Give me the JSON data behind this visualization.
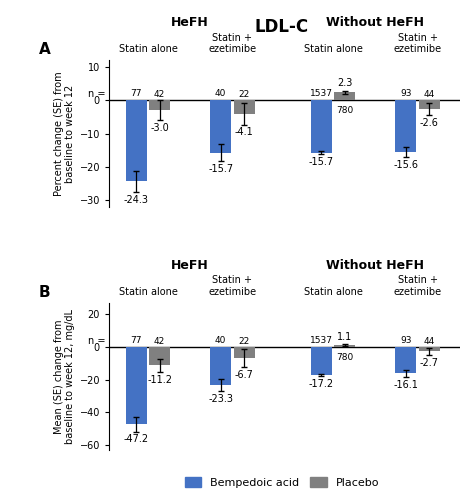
{
  "title": "LDL-C",
  "panel_A": {
    "ylabel": "Percent change (SE) from\nbaseline to week 12",
    "ylim": [
      -32,
      12
    ],
    "yticks": [
      -30,
      -20,
      -10,
      0,
      10
    ],
    "bempedoic_values": [
      -24.3,
      -15.7,
      -15.7,
      -15.6
    ],
    "placebo_values": [
      -3.0,
      -4.1,
      2.3,
      -2.6
    ],
    "bempedoic_errors": [
      3.2,
      2.5,
      0.45,
      1.5
    ],
    "placebo_errors": [
      3.0,
      3.2,
      0.55,
      1.8
    ],
    "bempedoic_n": [
      77,
      40,
      1537,
      93
    ],
    "placebo_n": [
      42,
      22,
      780,
      44
    ],
    "placebo_n_below": [
      false,
      false,
      true,
      false
    ],
    "group_labels": [
      "Statin alone",
      "Statin +\nezetimibe",
      "Statin alone",
      "Statin +\nezetimibe"
    ],
    "hefh_labels": [
      "HeFH",
      "Without HeFH"
    ]
  },
  "panel_B": {
    "ylabel": "Mean (SE) change from\nbaseline to week 12, mg/dL",
    "ylim": [
      -63,
      27
    ],
    "yticks": [
      -60,
      -40,
      -20,
      0,
      20
    ],
    "bempedoic_values": [
      -47.2,
      -23.3,
      -17.2,
      -16.1
    ],
    "placebo_values": [
      -11.2,
      -6.7,
      1.1,
      -2.7
    ],
    "bempedoic_errors": [
      4.5,
      3.5,
      0.5,
      2.0
    ],
    "placebo_errors": [
      4.0,
      5.5,
      0.7,
      2.2
    ],
    "bempedoic_n": [
      77,
      40,
      1537,
      93
    ],
    "placebo_n": [
      42,
      22,
      780,
      44
    ],
    "placebo_n_below": [
      false,
      false,
      true,
      false
    ],
    "group_labels": [
      "Statin alone",
      "Statin +\nezetimibe",
      "Statin alone",
      "Statin +\nezetimibe"
    ],
    "hefh_labels": [
      "HeFH",
      "Without HeFH"
    ]
  },
  "blue_color": "#4472C4",
  "gray_color": "#808080",
  "bar_width": 0.32,
  "group_centers": [
    1.05,
    2.35,
    3.9,
    5.2
  ],
  "xlim": [
    0.45,
    5.85
  ],
  "legend_labels": [
    "Bempedoic acid",
    "Placebo"
  ]
}
